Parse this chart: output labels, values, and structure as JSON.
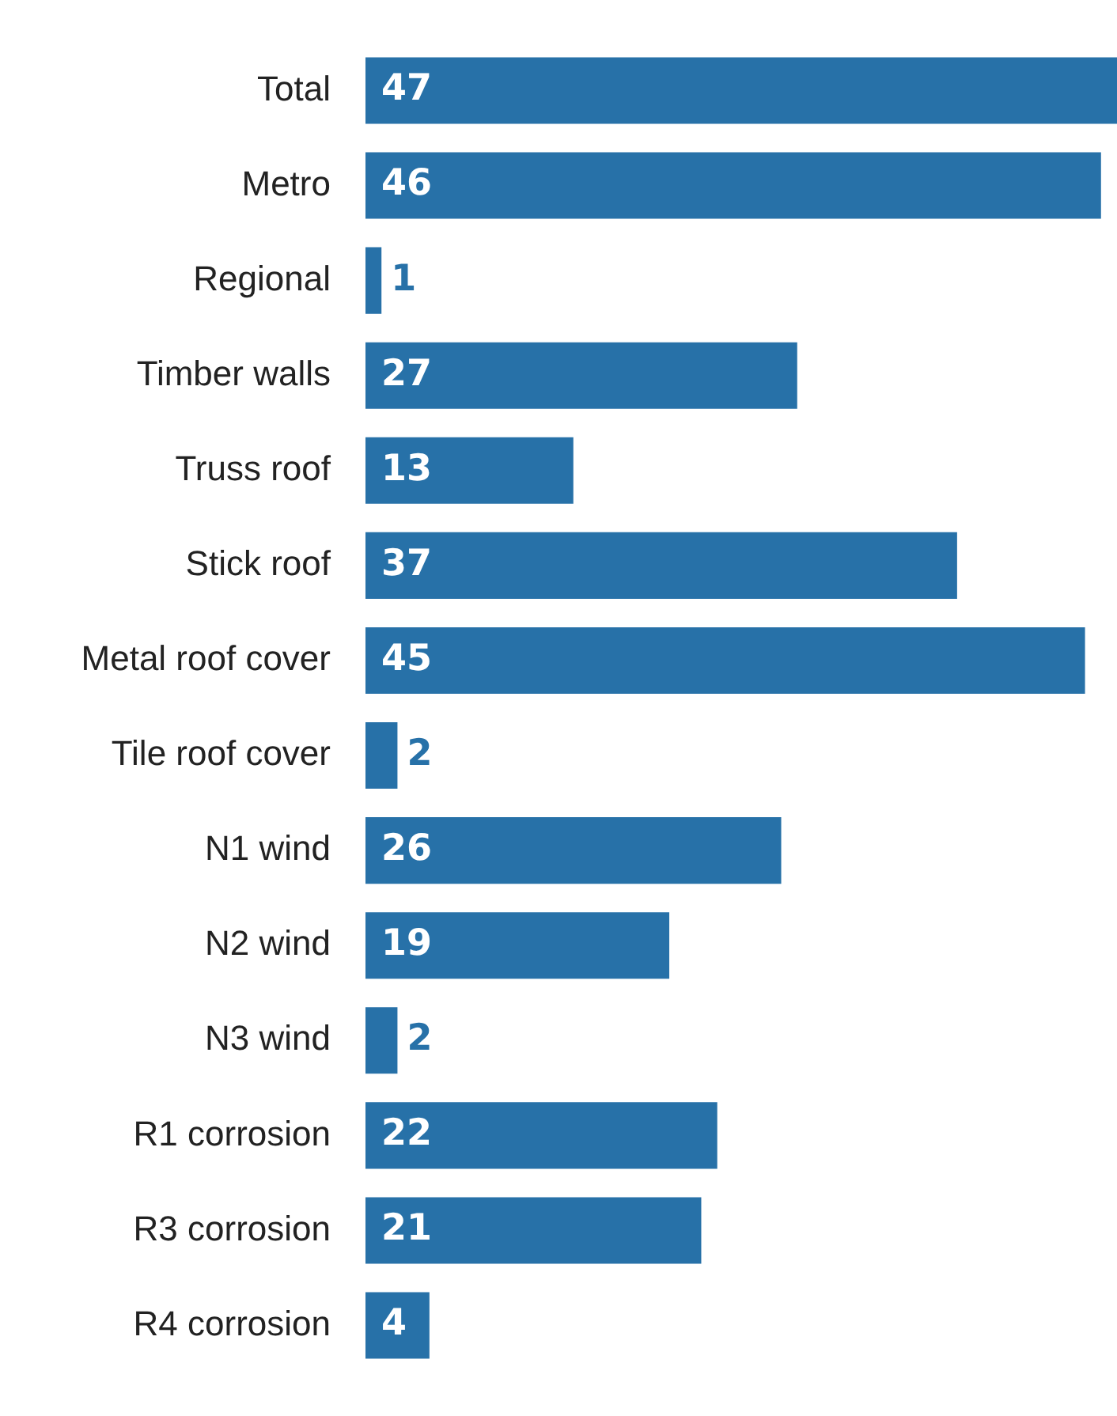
{
  "chart_data": {
    "type": "bar",
    "orientation": "horizontal",
    "categories": [
      "Total",
      "Metro",
      "Regional",
      "Timber walls",
      "Truss roof",
      "Stick roof",
      "Metal roof cover",
      "Tile roof cover",
      "N1 wind",
      "N2 wind",
      "N3 wind",
      "R1 corrosion",
      "R3 corrosion",
      "R4 corrosion"
    ],
    "values": [
      47,
      46,
      1,
      27,
      13,
      37,
      45,
      2,
      26,
      19,
      2,
      22,
      21,
      4
    ],
    "color": "#2771a8",
    "data_labels": true,
    "legend": false
  }
}
